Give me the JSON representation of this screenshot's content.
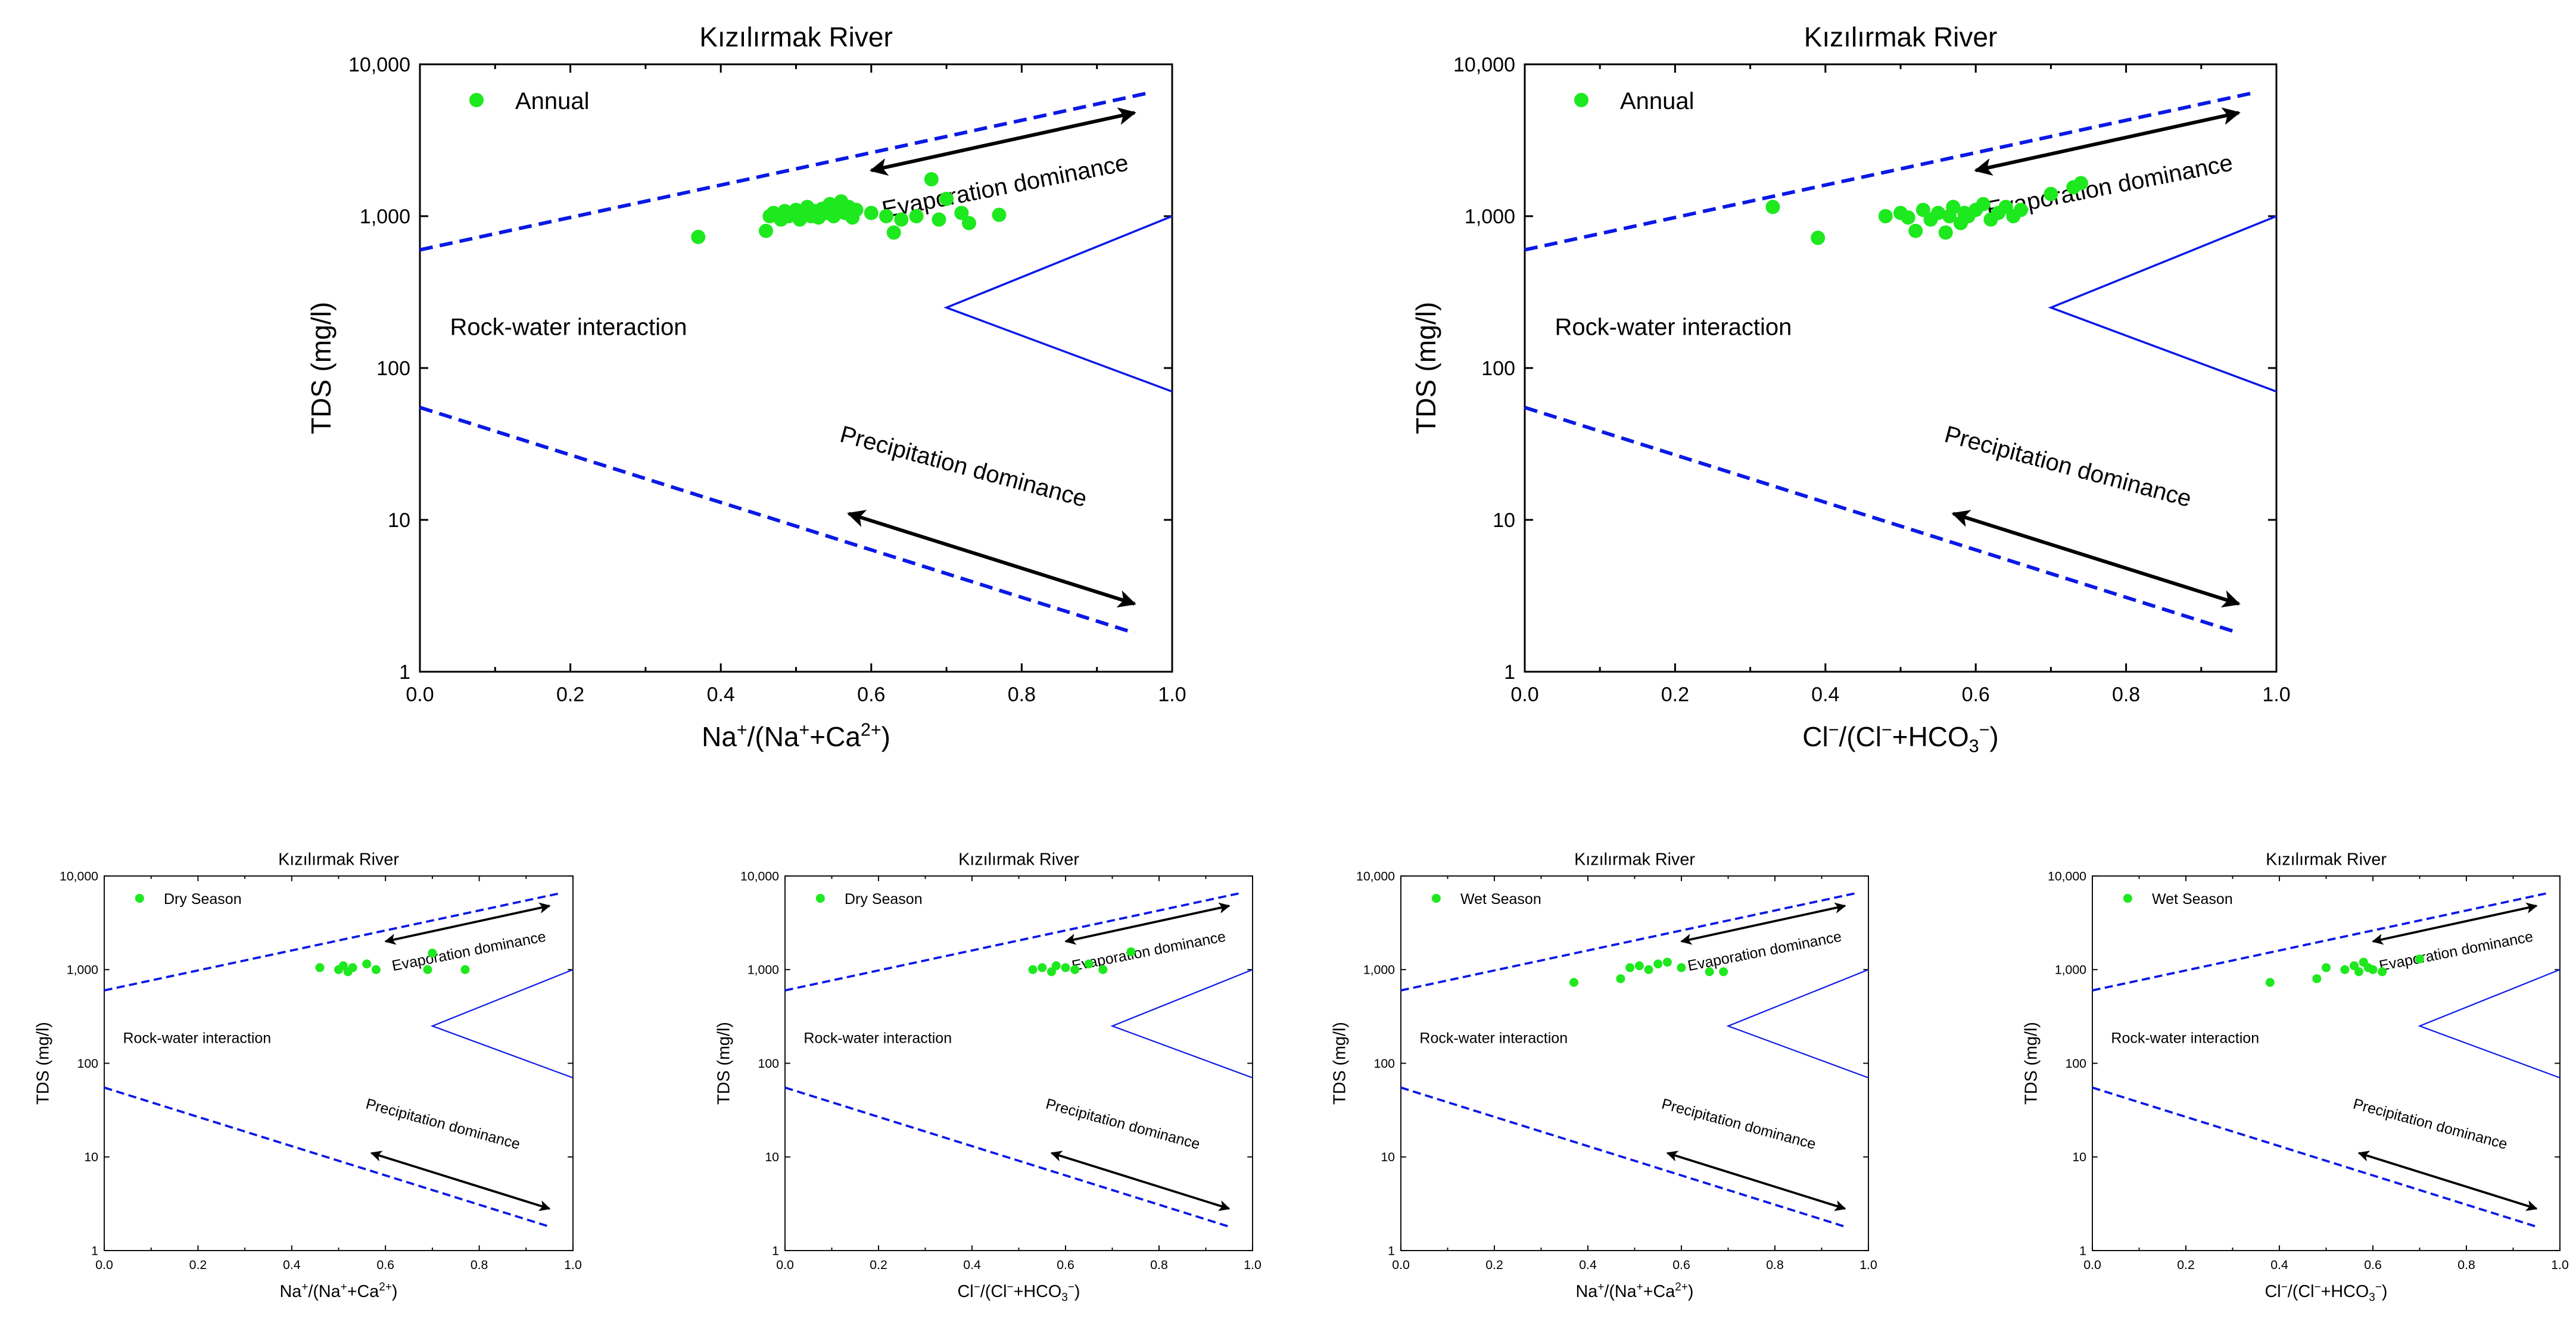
{
  "figure": {
    "colors": {
      "point": "#1ee81e",
      "line": "#0a19e6",
      "arrow": "#000000",
      "axis": "#000000",
      "background": "#ffffff"
    }
  },
  "chart_data": [
    {
      "type": "scatter",
      "title": "Kızılırmak River",
      "xlabel_main": "Na",
      "xlabel_sup1": "+",
      "xlabel_mid": "/(Na",
      "xlabel_sup2": "+",
      "xlabel_mid2": "+Ca",
      "xlabel_sup3": "2+",
      "xlabel_end": ")",
      "ylabel": "TDS (mg/l)",
      "xlim": [
        0,
        1
      ],
      "ylim": [
        1,
        10000
      ],
      "yscale": "log",
      "xticks": [
        "0.0",
        "0.2",
        "0.4",
        "0.6",
        "0.8",
        "1.0"
      ],
      "yticks": [
        "1",
        "10",
        "100",
        "1,000",
        "10,000"
      ],
      "legend": "Annual",
      "annotations": {
        "evaporation": "Evaporation dominance",
        "rock": "Rock-water interaction",
        "precipitation": "Precipitation dominance"
      },
      "series": [
        {
          "name": "Annual",
          "points": [
            [
              0.37,
              730
            ],
            [
              0.46,
              800
            ],
            [
              0.465,
              1000
            ],
            [
              0.47,
              1050
            ],
            [
              0.48,
              950
            ],
            [
              0.485,
              1080
            ],
            [
              0.49,
              1000
            ],
            [
              0.5,
              1100
            ],
            [
              0.505,
              950
            ],
            [
              0.51,
              1050
            ],
            [
              0.515,
              1150
            ],
            [
              0.52,
              1000
            ],
            [
              0.525,
              1080
            ],
            [
              0.53,
              980
            ],
            [
              0.535,
              1120
            ],
            [
              0.54,
              1050
            ],
            [
              0.545,
              1200
            ],
            [
              0.55,
              1000
            ],
            [
              0.555,
              1100
            ],
            [
              0.56,
              1250
            ],
            [
              0.565,
              1050
            ],
            [
              0.57,
              1150
            ],
            [
              0.575,
              980
            ],
            [
              0.58,
              1100
            ],
            [
              0.6,
              1050
            ],
            [
              0.62,
              1000
            ],
            [
              0.63,
              780
            ],
            [
              0.64,
              950
            ],
            [
              0.66,
              1000
            ],
            [
              0.68,
              1750
            ],
            [
              0.69,
              950
            ],
            [
              0.7,
              1300
            ],
            [
              0.72,
              1050
            ],
            [
              0.73,
              900
            ],
            [
              0.77,
              1020
            ]
          ]
        }
      ]
    },
    {
      "type": "scatter",
      "title": "Kızılırmak River",
      "xlabel_main": "Cl",
      "xlabel_sup1": "−",
      "xlabel_mid": "/(Cl",
      "xlabel_sup2": "−",
      "xlabel_mid2": "+HCO",
      "xlabel_sub": "3",
      "xlabel_sup3": "−",
      "xlabel_end": ")",
      "ylabel": "TDS (mg/l)",
      "xlim": [
        0,
        1
      ],
      "ylim": [
        1,
        10000
      ],
      "yscale": "log",
      "xticks": [
        "0.0",
        "0.2",
        "0.4",
        "0.6",
        "0.8",
        "1.0"
      ],
      "yticks": [
        "1",
        "10",
        "100",
        "1,000",
        "10,000"
      ],
      "legend": "Annual",
      "annotations": {
        "evaporation": "Evaporation dominance",
        "rock": "Rock-water interaction",
        "precipitation": "Precipitation dominance"
      },
      "series": [
        {
          "name": "Annual",
          "points": [
            [
              0.33,
              1150
            ],
            [
              0.39,
              720
            ],
            [
              0.48,
              1000
            ],
            [
              0.5,
              1050
            ],
            [
              0.51,
              980
            ],
            [
              0.52,
              800
            ],
            [
              0.53,
              1100
            ],
            [
              0.54,
              950
            ],
            [
              0.55,
              1050
            ],
            [
              0.56,
              780
            ],
            [
              0.565,
              1000
            ],
            [
              0.57,
              1150
            ],
            [
              0.58,
              900
            ],
            [
              0.585,
              1050
            ],
            [
              0.59,
              1000
            ],
            [
              0.6,
              1100
            ],
            [
              0.61,
              1200
            ],
            [
              0.62,
              950
            ],
            [
              0.63,
              1050
            ],
            [
              0.64,
              1150
            ],
            [
              0.65,
              1000
            ],
            [
              0.66,
              1100
            ],
            [
              0.7,
              1400
            ],
            [
              0.73,
              1550
            ],
            [
              0.74,
              1650
            ]
          ]
        }
      ]
    },
    {
      "type": "scatter",
      "title": "Kızılırmak River",
      "xlabel_main": "Na",
      "xlabel_sup1": "+",
      "xlabel_mid": "/(Na",
      "xlabel_sup2": "+",
      "xlabel_mid2": "+Ca",
      "xlabel_sup3": "2+",
      "xlabel_end": ")",
      "ylabel": "TDS (mg/l)",
      "xlim": [
        0,
        1
      ],
      "ylim": [
        1,
        10000
      ],
      "yscale": "log",
      "xticks": [
        "0.0",
        "0.2",
        "0.4",
        "0.6",
        "0.8",
        "1.0"
      ],
      "yticks": [
        "1",
        "10",
        "100",
        "1,000",
        "10,000"
      ],
      "legend": "Dry Season",
      "annotations": {
        "evaporation": "Evaporation dominance",
        "rock": "Rock-water interaction",
        "precipitation": "Precipitation dominance"
      },
      "series": [
        {
          "name": "Dry Season",
          "points": [
            [
              0.46,
              1050
            ],
            [
              0.5,
              1000
            ],
            [
              0.51,
              1100
            ],
            [
              0.52,
              950
            ],
            [
              0.53,
              1050
            ],
            [
              0.56,
              1150
            ],
            [
              0.58,
              1000
            ],
            [
              0.69,
              1000
            ],
            [
              0.7,
              1500
            ],
            [
              0.77,
              1000
            ]
          ]
        }
      ]
    },
    {
      "type": "scatter",
      "title": "Kızılırmak River",
      "xlabel_main": "Cl",
      "xlabel_sup1": "−",
      "xlabel_mid": "/(Cl",
      "xlabel_sup2": "−",
      "xlabel_mid2": "+HCO",
      "xlabel_sub": "3",
      "xlabel_sup3": "−",
      "xlabel_end": ")",
      "ylabel": "TDS (mg/l)",
      "xlim": [
        0,
        1
      ],
      "ylim": [
        1,
        10000
      ],
      "yscale": "log",
      "xticks": [
        "0.0",
        "0.2",
        "0.4",
        "0.6",
        "0.8",
        "1.0"
      ],
      "yticks": [
        "1",
        "10",
        "100",
        "1,000",
        "10,000"
      ],
      "legend": "Dry Season",
      "annotations": {
        "evaporation": "Evaporation dominance",
        "rock": "Rock-water interaction",
        "precipitation": "Precipitation dominance"
      },
      "series": [
        {
          "name": "Dry Season",
          "points": [
            [
              0.53,
              1000
            ],
            [
              0.55,
              1050
            ],
            [
              0.57,
              950
            ],
            [
              0.58,
              1100
            ],
            [
              0.6,
              1050
            ],
            [
              0.62,
              1000
            ],
            [
              0.65,
              1150
            ],
            [
              0.68,
              1000
            ],
            [
              0.74,
              1550
            ]
          ]
        }
      ]
    },
    {
      "type": "scatter",
      "title": "Kızılırmak River",
      "xlabel_main": "Na",
      "xlabel_sup1": "+",
      "xlabel_mid": "/(Na",
      "xlabel_sup2": "+",
      "xlabel_mid2": "+Ca",
      "xlabel_sup3": "2+",
      "xlabel_end": ")",
      "ylabel": "TDS (mg/l)",
      "xlim": [
        0,
        1
      ],
      "ylim": [
        1,
        10000
      ],
      "yscale": "log",
      "xticks": [
        "0.0",
        "0.2",
        "0.4",
        "0.6",
        "0.8",
        "1.0"
      ],
      "yticks": [
        "1",
        "10",
        "100",
        "1,000",
        "10,000"
      ],
      "legend": "Wet Season",
      "annotations": {
        "evaporation": "Evaporation dominance",
        "rock": "Rock-water interaction",
        "precipitation": "Precipitation dominance"
      },
      "series": [
        {
          "name": "Wet Season",
          "points": [
            [
              0.37,
              730
            ],
            [
              0.47,
              800
            ],
            [
              0.49,
              1050
            ],
            [
              0.51,
              1100
            ],
            [
              0.53,
              1000
            ],
            [
              0.55,
              1150
            ],
            [
              0.57,
              1200
            ],
            [
              0.6,
              1050
            ],
            [
              0.66,
              950
            ],
            [
              0.69,
              950
            ]
          ]
        }
      ]
    },
    {
      "type": "scatter",
      "title": "Kızılırmak River",
      "xlabel_main": "Cl",
      "xlabel_sup1": "−",
      "xlabel_mid": "/(Cl",
      "xlabel_sup2": "−",
      "xlabel_mid2": "+HCO",
      "xlabel_sub": "3",
      "xlabel_sup3": "−",
      "xlabel_end": ")",
      "ylabel": "TDS (mg/l)",
      "xlim": [
        0,
        1
      ],
      "ylim": [
        1,
        10000
      ],
      "yscale": "log",
      "xticks": [
        "0.0",
        "0.2",
        "0.4",
        "0.6",
        "0.8",
        "1.0"
      ],
      "yticks": [
        "1",
        "10",
        "100",
        "1,000",
        "10,000"
      ],
      "legend": "Wet Season",
      "annotations": {
        "evaporation": "Evaporation dominance",
        "rock": "Rock-water interaction",
        "precipitation": "Precipitation dominance"
      },
      "series": [
        {
          "name": "Wet Season",
          "points": [
            [
              0.38,
              730
            ],
            [
              0.48,
              800
            ],
            [
              0.5,
              1050
            ],
            [
              0.54,
              1000
            ],
            [
              0.56,
              1100
            ],
            [
              0.57,
              950
            ],
            [
              0.58,
              1200
            ],
            [
              0.59,
              1050
            ],
            [
              0.6,
              1000
            ],
            [
              0.62,
              950
            ],
            [
              0.7,
              1300
            ]
          ]
        }
      ]
    }
  ]
}
